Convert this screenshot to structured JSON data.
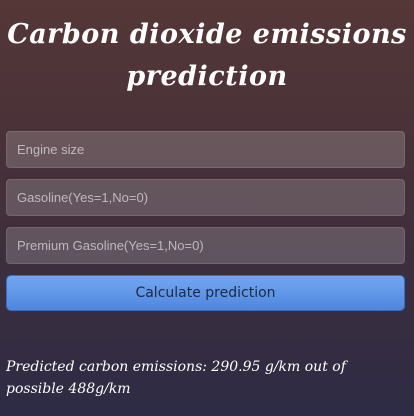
{
  "header": {
    "title": "Carbon dioxide emissions prediction"
  },
  "form": {
    "engine_size_placeholder": "Engine size",
    "gasoline_placeholder": "Gasoline(Yes=1,No=0)",
    "premium_gasoline_placeholder": "Premium Gasoline(Yes=1,No=0)",
    "submit_label": "Calculate prediction"
  },
  "result": {
    "text": "Predicted carbon emissions: 290.95 g/km out of possible 488g/km"
  }
}
